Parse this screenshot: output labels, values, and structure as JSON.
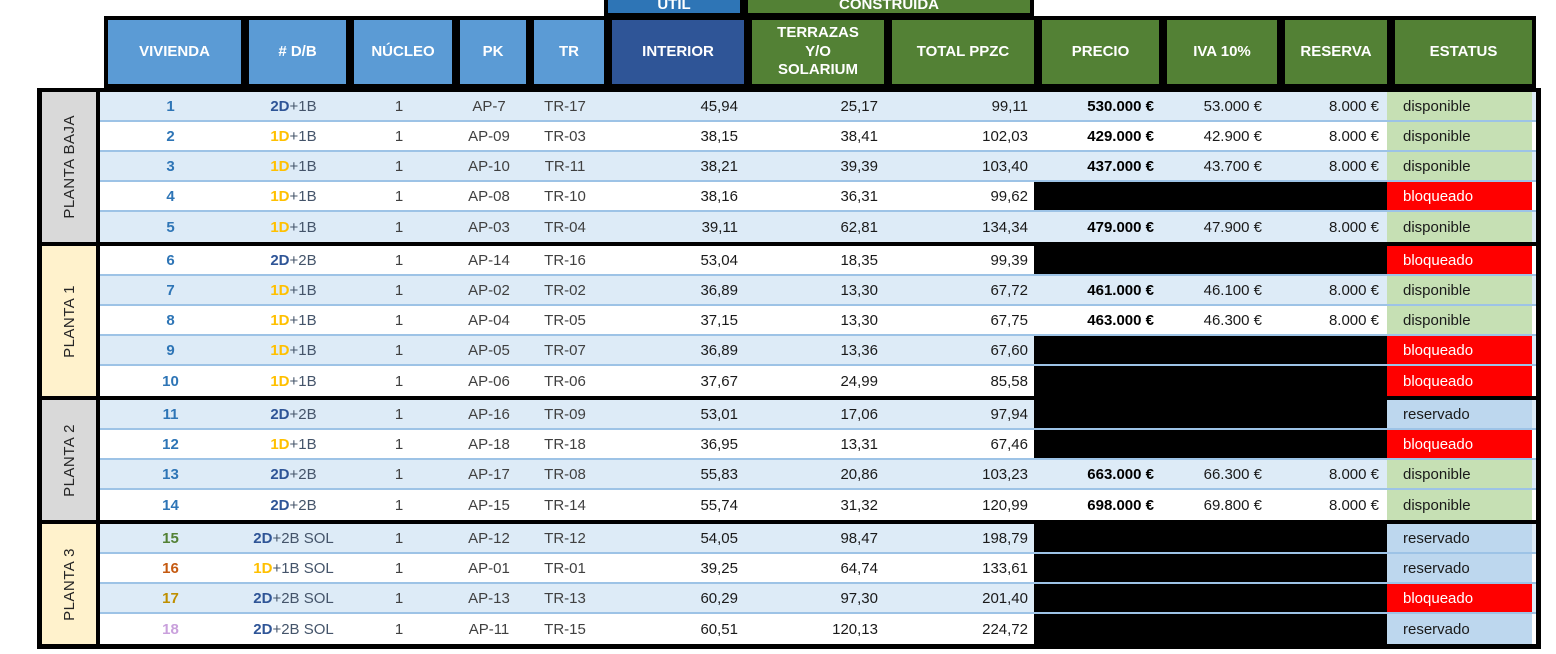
{
  "sheet": {
    "top_headers": {
      "util": "ÚTIL",
      "construida": "CONSTRUIDA"
    },
    "columns": [
      {
        "key": "vivienda",
        "label": "VIVIENDA",
        "style": "lightblue"
      },
      {
        "key": "db",
        "label": "# D/B",
        "style": "lightblue"
      },
      {
        "key": "nucleo",
        "label": "NÚCLEO",
        "style": "lightblue"
      },
      {
        "key": "pk",
        "label": "PK",
        "style": "lightblue"
      },
      {
        "key": "tr",
        "label": "TR",
        "style": "lightblue"
      },
      {
        "key": "interior",
        "label": "INTERIOR",
        "style": "darkblue"
      },
      {
        "key": "terrazas",
        "label": "TERRAZAS Y/O SOLARIUM",
        "style": "green"
      },
      {
        "key": "total",
        "label": "TOTAL PPZC",
        "style": "green"
      },
      {
        "key": "precio",
        "label": "PRECIO",
        "style": "green"
      },
      {
        "key": "iva",
        "label": "IVA 10%",
        "style": "green"
      },
      {
        "key": "reserva",
        "label": "RESERVA",
        "style": "green"
      },
      {
        "key": "estatus",
        "label": "ESTATUS",
        "style": "green"
      }
    ],
    "status_styles": {
      "disponible": {
        "bg": "#C6E0B4",
        "fg": "#1a1a1a"
      },
      "bloqueado": {
        "bg": "#FF0000",
        "fg": "#FFFFFF"
      },
      "reservado": {
        "bg": "#BDD7EE",
        "fg": "#1a1a1a"
      }
    },
    "accent_colors": {
      "header_lightblue": "#5B9BD5",
      "header_darkblue": "#2F5597",
      "header_util_blue": "#2E75B6",
      "header_green": "#538135",
      "row_blue": "#DDEBF7",
      "row_line": "#9DC3E6",
      "label_gray": "#D9D9D9",
      "label_cream": "#FFF2CC",
      "redacted_black": "#000000"
    },
    "groups": [
      {
        "label": "PLANTA BAJA",
        "tint": "gray",
        "rows": [
          {
            "vivienda": "1",
            "num_color": "#2E75B6",
            "db_prefix": "2D",
            "db_prefix_color": "#2F5597",
            "db_suffix": "+1B",
            "nucleo": "1",
            "pk": "AP-7",
            "tr": "TR-17",
            "interior": "45,94",
            "terrazas": "25,17",
            "total": "99,11",
            "precio": "530.000 €",
            "iva": "53.000 €",
            "reserva": "8.000 €",
            "redacted": false,
            "estatus": "disponible"
          },
          {
            "vivienda": "2",
            "num_color": "#2E75B6",
            "db_prefix": "1D",
            "db_prefix_color": "#FFC000",
            "db_suffix": "+1B",
            "nucleo": "1",
            "pk": "AP-09",
            "tr": "TR-03",
            "interior": "38,15",
            "terrazas": "38,41",
            "total": "102,03",
            "precio": "429.000 €",
            "iva": "42.900 €",
            "reserva": "8.000 €",
            "redacted": false,
            "estatus": "disponible"
          },
          {
            "vivienda": "3",
            "num_color": "#2E75B6",
            "db_prefix": "1D",
            "db_prefix_color": "#FFC000",
            "db_suffix": "+1B",
            "nucleo": "1",
            "pk": "AP-10",
            "tr": "TR-11",
            "interior": "38,21",
            "terrazas": "39,39",
            "total": "103,40",
            "precio": "437.000 €",
            "iva": "43.700 €",
            "reserva": "8.000 €",
            "redacted": false,
            "estatus": "disponible"
          },
          {
            "vivienda": "4",
            "num_color": "#2E75B6",
            "db_prefix": "1D",
            "db_prefix_color": "#FFC000",
            "db_suffix": "+1B",
            "nucleo": "1",
            "pk": "AP-08",
            "tr": "TR-10",
            "interior": "38,16",
            "terrazas": "36,31",
            "total": "99,62",
            "redacted": true,
            "estatus": "bloqueado"
          },
          {
            "vivienda": "5",
            "num_color": "#2E75B6",
            "db_prefix": "1D",
            "db_prefix_color": "#FFC000",
            "db_suffix": "+1B",
            "nucleo": "1",
            "pk": "AP-03",
            "tr": "TR-04",
            "interior": "39,11",
            "terrazas": "62,81",
            "total": "134,34",
            "precio": "479.000 €",
            "iva": "47.900 €",
            "reserva": "8.000 €",
            "redacted": false,
            "estatus": "disponible"
          }
        ]
      },
      {
        "label": "PLANTA 1",
        "tint": "cream",
        "rows": [
          {
            "vivienda": "6",
            "num_color": "#2E75B6",
            "db_prefix": "2D",
            "db_prefix_color": "#2F5597",
            "db_suffix": "+2B",
            "nucleo": "1",
            "pk": "AP-14",
            "tr": "TR-16",
            "interior": "53,04",
            "terrazas": "18,35",
            "total": "99,39",
            "redacted": true,
            "estatus": "bloqueado"
          },
          {
            "vivienda": "7",
            "num_color": "#2E75B6",
            "db_prefix": "1D",
            "db_prefix_color": "#FFC000",
            "db_suffix": "+1B",
            "nucleo": "1",
            "pk": "AP-02",
            "tr": "TR-02",
            "interior": "36,89",
            "terrazas": "13,30",
            "total": "67,72",
            "precio": "461.000 €",
            "iva": "46.100 €",
            "reserva": "8.000 €",
            "redacted": false,
            "estatus": "disponible"
          },
          {
            "vivienda": "8",
            "num_color": "#2E75B6",
            "db_prefix": "1D",
            "db_prefix_color": "#FFC000",
            "db_suffix": "+1B",
            "nucleo": "1",
            "pk": "AP-04",
            "tr": "TR-05",
            "interior": "37,15",
            "terrazas": "13,30",
            "total": "67,75",
            "precio": "463.000 €",
            "iva": "46.300 €",
            "reserva": "8.000 €",
            "redacted": false,
            "estatus": "disponible"
          },
          {
            "vivienda": "9",
            "num_color": "#2E75B6",
            "db_prefix": "1D",
            "db_prefix_color": "#FFC000",
            "db_suffix": "+1B",
            "nucleo": "1",
            "pk": "AP-05",
            "tr": "TR-07",
            "interior": "36,89",
            "terrazas": "13,36",
            "total": "67,60",
            "redacted": true,
            "estatus": "bloqueado"
          },
          {
            "vivienda": "10",
            "num_color": "#2E75B6",
            "db_prefix": "1D",
            "db_prefix_color": "#FFC000",
            "db_suffix": "+1B",
            "nucleo": "1",
            "pk": "AP-06",
            "tr": "TR-06",
            "interior": "37,67",
            "terrazas": "24,99",
            "total": "85,58",
            "redacted": true,
            "estatus": "bloqueado"
          }
        ]
      },
      {
        "label": "PLANTA 2",
        "tint": "gray",
        "rows": [
          {
            "vivienda": "11",
            "num_color": "#2E75B6",
            "db_prefix": "2D",
            "db_prefix_color": "#2F5597",
            "db_suffix": "+2B",
            "nucleo": "1",
            "pk": "AP-16",
            "tr": "TR-09",
            "interior": "53,01",
            "terrazas": "17,06",
            "total": "97,94",
            "redacted": true,
            "estatus": "reservado"
          },
          {
            "vivienda": "12",
            "num_color": "#2E75B6",
            "db_prefix": "1D",
            "db_prefix_color": "#FFC000",
            "db_suffix": "+1B",
            "nucleo": "1",
            "pk": "AP-18",
            "tr": "TR-18",
            "interior": "36,95",
            "terrazas": "13,31",
            "total": "67,46",
            "redacted": true,
            "estatus": "bloqueado"
          },
          {
            "vivienda": "13",
            "num_color": "#2E75B6",
            "db_prefix": "2D",
            "db_prefix_color": "#2F5597",
            "db_suffix": "+2B",
            "nucleo": "1",
            "pk": "AP-17",
            "tr": "TR-08",
            "interior": "55,83",
            "terrazas": "20,86",
            "total": "103,23",
            "precio": "663.000 €",
            "iva": "66.300 €",
            "reserva": "8.000 €",
            "redacted": false,
            "estatus": "disponible"
          },
          {
            "vivienda": "14",
            "num_color": "#2E75B6",
            "db_prefix": "2D",
            "db_prefix_color": "#2F5597",
            "db_suffix": "+2B",
            "nucleo": "1",
            "pk": "AP-15",
            "tr": "TR-14",
            "interior": "55,74",
            "terrazas": "31,32",
            "total": "120,99",
            "precio": "698.000 €",
            "iva": "69.800 €",
            "reserva": "8.000 €",
            "redacted": false,
            "estatus": "disponible"
          }
        ]
      },
      {
        "label": "PLANTA 3",
        "tint": "cream",
        "rows": [
          {
            "vivienda": "15",
            "num_color": "#538135",
            "db_prefix": "2D",
            "db_prefix_color": "#2F5597",
            "db_suffix": "+2B SOL",
            "nucleo": "1",
            "pk": "AP-12",
            "tr": "TR-12",
            "interior": "54,05",
            "terrazas": "98,47",
            "total": "198,79",
            "redacted": true,
            "estatus": "reservado"
          },
          {
            "vivienda": "16",
            "num_color": "#C55A11",
            "db_prefix": "1D",
            "db_prefix_color": "#FFC000",
            "db_suffix": "+1B SOL",
            "nucleo": "1",
            "pk": "AP-01",
            "tr": "TR-01",
            "interior": "39,25",
            "terrazas": "64,74",
            "total": "133,61",
            "redacted": true,
            "estatus": "reservado"
          },
          {
            "vivienda": "17",
            "num_color": "#BF8F00",
            "db_prefix": "2D",
            "db_prefix_color": "#2F5597",
            "db_suffix": "+2B SOL",
            "nucleo": "1",
            "pk": "AP-13",
            "tr": "TR-13",
            "interior": "60,29",
            "terrazas": "97,30",
            "total": "201,40",
            "redacted": true,
            "estatus": "bloqueado"
          },
          {
            "vivienda": "18",
            "num_color": "#C9A0DC",
            "db_prefix": "2D",
            "db_prefix_color": "#2F5597",
            "db_suffix": "+2B SOL",
            "nucleo": "1",
            "pk": "AP-11",
            "tr": "TR-15",
            "interior": "60,51",
            "terrazas": "120,13",
            "total": "224,72",
            "redacted": true,
            "estatus": "reservado"
          }
        ]
      }
    ]
  }
}
